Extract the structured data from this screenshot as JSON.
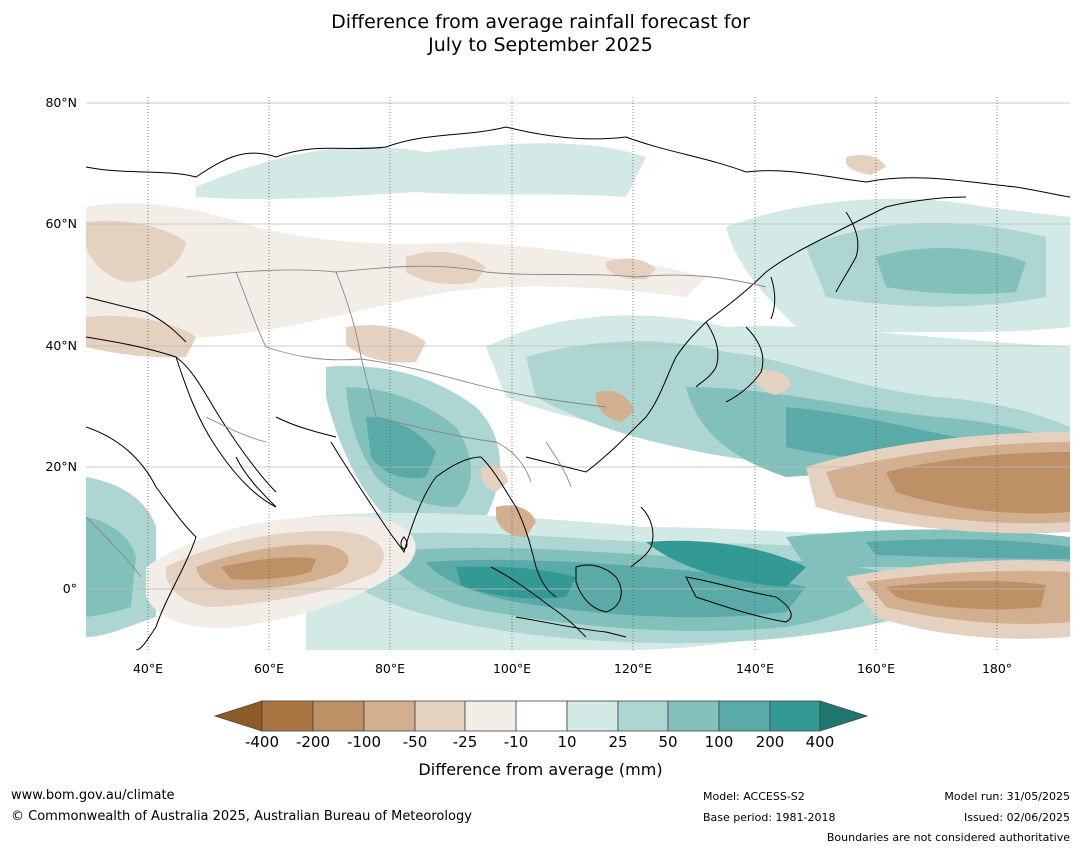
{
  "title": {
    "line1": "Difference from average rainfall forecast for",
    "line2": "July to September 2025"
  },
  "map": {
    "lat_labels": [
      "80°N",
      "60°N",
      "40°N",
      "20°N",
      "0°"
    ],
    "lon_labels": [
      "40°E",
      "60°E",
      "80°E",
      "100°E",
      "120°E",
      "140°E",
      "160°E",
      "180°"
    ],
    "lat_range": [
      -10,
      80
    ],
    "lon_range": [
      30,
      192
    ],
    "gridlines": true
  },
  "colorbar": {
    "title": "Difference from average (mm)",
    "tick_labels": [
      "-400",
      "-200",
      "-100",
      "-50",
      "-25",
      "-10",
      "10",
      "25",
      "50",
      "100",
      "200",
      "400"
    ],
    "colors": {
      "lt_-400": "#8e5a26",
      "-400_-200": "#a97440",
      "-200_-100": "#be9066",
      "-100_-50": "#d2b08f",
      "-50_-25": "#e4d1bf",
      "-25_-10": "#f2ede6",
      "-10_10": "#ffffff",
      "10_25": "#d3e9e6",
      "25_50": "#add6d3",
      "50_100": "#82c0bc",
      "100_200": "#5aaaa8",
      "200_400": "#339995",
      "gt_400": "#1f7770"
    }
  },
  "footer": {
    "website": "www.bom.gov.au/climate",
    "copyright": "© Commonwealth of Australia 2025, Australian Bureau of Meteorology",
    "model": "Model: ACCESS-S2",
    "base_period": "Base period: 1981-2018",
    "model_run": "Model run: 31/05/2025",
    "issued": "Issued: 02/06/2025",
    "boundaries_note": "Boundaries are not considered authoritative"
  }
}
